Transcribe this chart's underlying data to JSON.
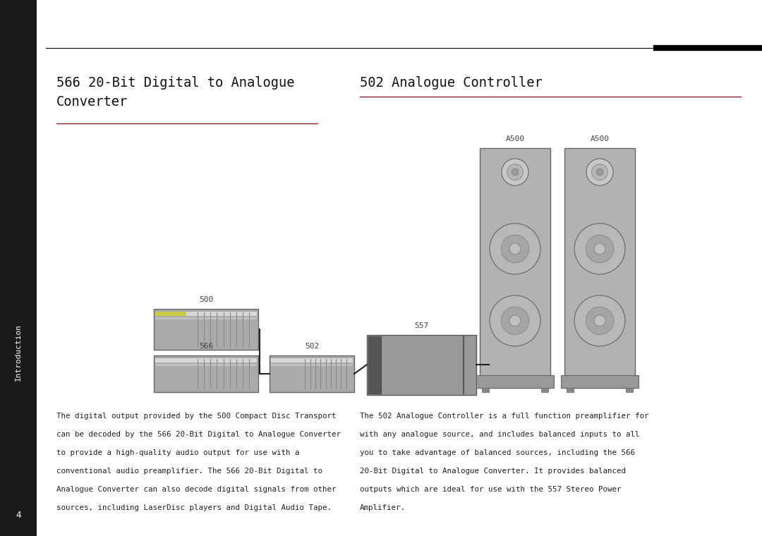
{
  "bg_color": "#ffffff",
  "sidebar_color": "#1a1a1a",
  "title_left": "566 20-Bit Digital to Analogue\nConverter",
  "title_right": "502 Analogue Controller",
  "body_left_lines": [
    "The digital output provided by the 500 Compact Disc Transport",
    "can be decoded by the 566 20-Bit Digital to Analogue Converter",
    "to provide a high-quality audio output for use with a",
    "conventional audio preamplifier. The 566 20-Bit Digital to",
    "Analogue Converter can also decode digital signals from other",
    "sources, including LaserDisc players and Digital Audio Tape."
  ],
  "body_right_lines": [
    "The 502 Analogue Controller is a full function preamplifier for",
    "with any analogue source, and includes balanced inputs to all",
    "you to take advantage of balanced sources, including the 566",
    "20-Bit Digital to Analogue Converter. It provides balanced",
    "outputs which are ideal for use with the 557 Stereo Power",
    "Amplifier."
  ],
  "underline_color": "#882222",
  "line_color": "#000000",
  "text_color": "#222222",
  "label_color": "#444444"
}
